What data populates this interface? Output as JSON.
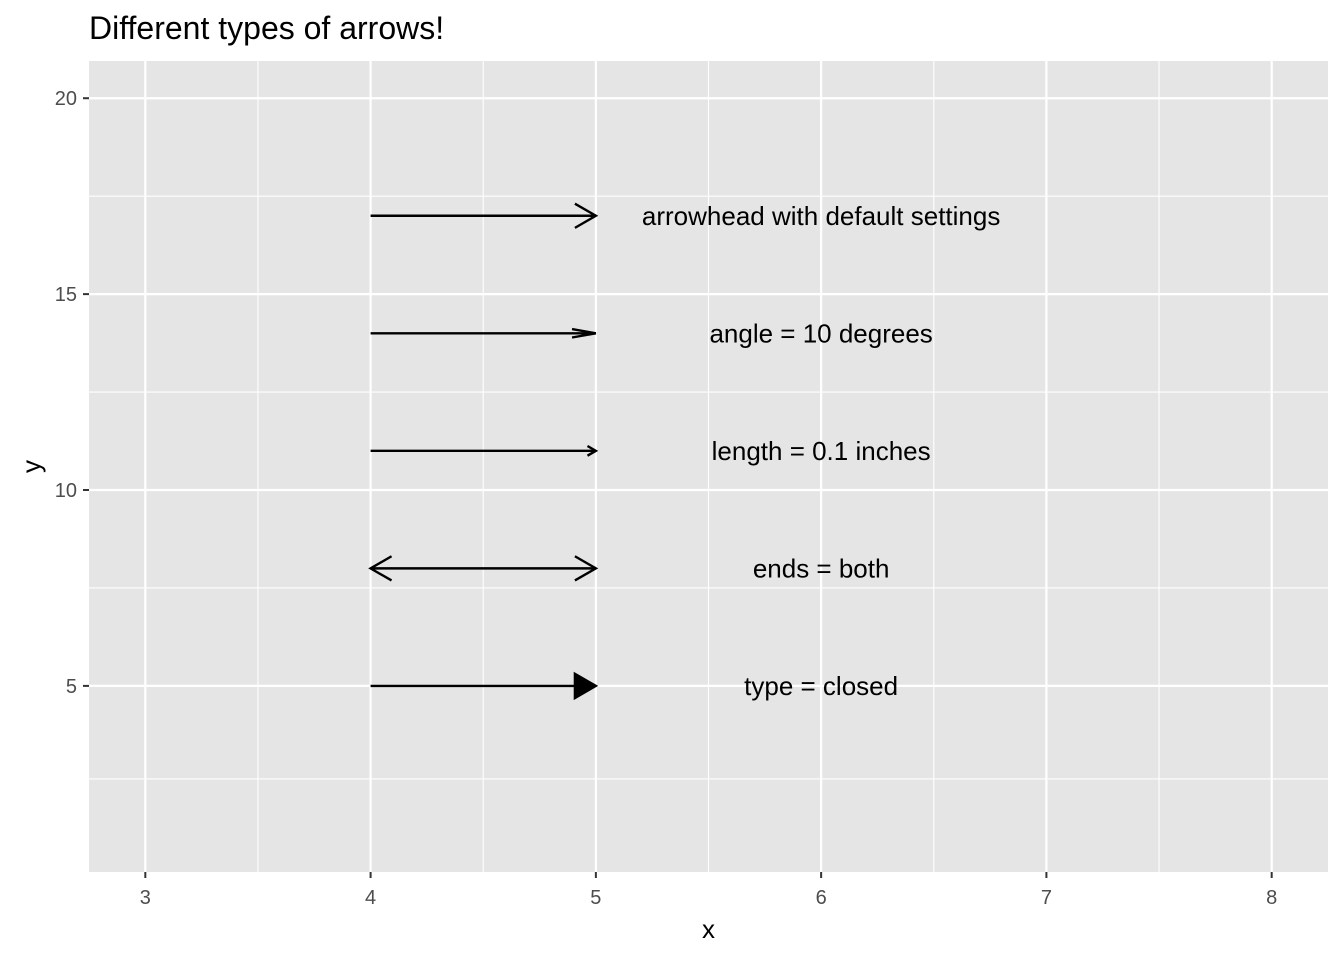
{
  "chart_data": {
    "type": "line",
    "title": "Different types of arrows!",
    "xlabel": "x",
    "ylabel": "y",
    "xlim": [
      2.75,
      8.25
    ],
    "ylim": [
      0.25,
      20.95
    ],
    "x_ticks": [
      3,
      4,
      5,
      6,
      7,
      8
    ],
    "y_ticks": [
      5,
      10,
      15,
      20
    ],
    "grid": true,
    "panel_background": "#e5e5e5",
    "grid_color": "#ffffff",
    "arrows": [
      {
        "x": 4,
        "xend": 5,
        "y": 17,
        "ends": "last",
        "type": "open",
        "angle": 30,
        "length": "0.25 inches"
      },
      {
        "x": 4,
        "xend": 5,
        "y": 14,
        "ends": "last",
        "type": "open",
        "angle": 10,
        "length": "0.25 inches"
      },
      {
        "x": 4,
        "xend": 5,
        "y": 11,
        "ends": "last",
        "type": "open",
        "angle": 30,
        "length": "0.1 inches"
      },
      {
        "x": 4,
        "xend": 5,
        "y": 8,
        "ends": "both",
        "type": "open",
        "angle": 30,
        "length": "0.25 inches"
      },
      {
        "x": 4,
        "xend": 5,
        "y": 5,
        "ends": "last",
        "type": "closed",
        "angle": 30,
        "length": "0.25 inches"
      }
    ],
    "annotations": [
      {
        "x": 6,
        "y": 17,
        "text": "arrowhead with default settings"
      },
      {
        "x": 6,
        "y": 14,
        "text": "angle = 10 degrees"
      },
      {
        "x": 6,
        "y": 11,
        "text": "length = 0.1 inches"
      },
      {
        "x": 6,
        "y": 8,
        "text": "ends = both"
      },
      {
        "x": 6,
        "y": 5,
        "text": "type = closed"
      }
    ]
  }
}
